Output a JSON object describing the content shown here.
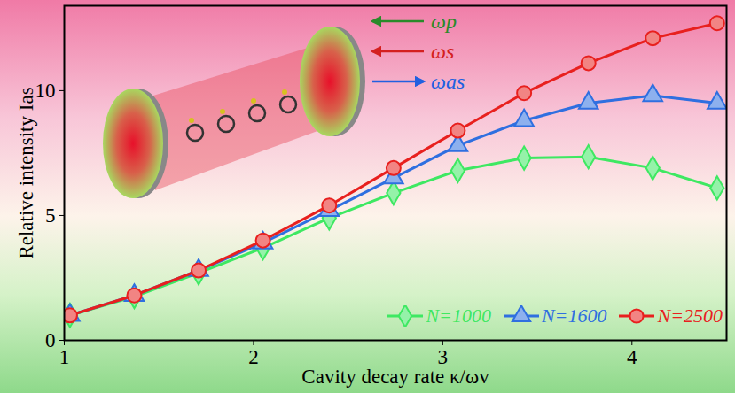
{
  "chart_data": {
    "type": "line",
    "x_label": "Cavity decay rate κ/ωv",
    "y_label": "Relative intensity Ias",
    "x": [
      1.03,
      1.37,
      1.71,
      2.05,
      2.4,
      2.74,
      3.08,
      3.43,
      3.77,
      4.11,
      4.45
    ],
    "series": [
      {
        "name": "N=1000",
        "color": "#3ee862",
        "marker": "diamond",
        "values": [
          1.0,
          1.75,
          2.7,
          3.7,
          4.9,
          5.9,
          6.8,
          7.3,
          7.35,
          6.9,
          6.1
        ]
      },
      {
        "name": "N=1600",
        "color": "#2f6fe0",
        "marker": "triangle",
        "values": [
          1.0,
          1.8,
          2.8,
          3.9,
          5.2,
          6.5,
          7.8,
          8.8,
          9.5,
          9.8,
          9.5
        ]
      },
      {
        "name": "N=2500",
        "color": "#e8201e",
        "marker": "circle",
        "values": [
          1.0,
          1.8,
          2.8,
          4.0,
          5.4,
          6.9,
          8.4,
          9.9,
          11.1,
          12.1,
          12.7
        ]
      }
    ],
    "xlim": [
      1,
      4.5
    ],
    "xticks": [
      1,
      2,
      3,
      4
    ],
    "ylim": [
      0,
      13.4
    ],
    "yticks": [
      0,
      5,
      10
    ],
    "legend": "lower right",
    "annotations": [
      {
        "text": "ωp",
        "color": "#2a8a2a"
      },
      {
        "text": "ωs",
        "color": "#d42020"
      },
      {
        "text": "ωas",
        "color": "#2060e0"
      }
    ]
  }
}
